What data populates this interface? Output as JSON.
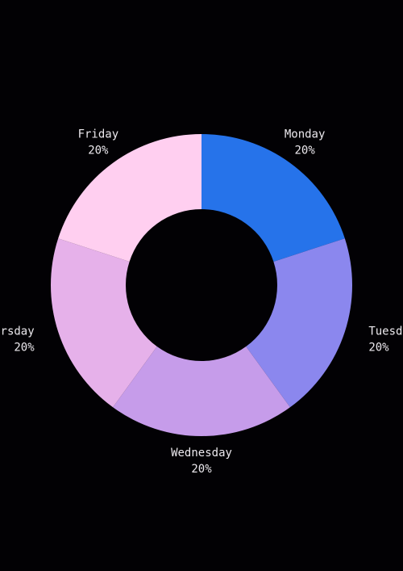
{
  "chart_data": {
    "type": "donut",
    "categories": [
      "Monday",
      "Tuesday",
      "Wednesday",
      "Thursday",
      "Friday"
    ],
    "values": [
      20,
      20,
      20,
      20,
      20
    ],
    "value_labels": [
      "20%",
      "20%",
      "20%",
      "20%",
      "20%"
    ],
    "colors": [
      "#2673ea",
      "#8b87ee",
      "#c69cea",
      "#e6b1ea",
      "#ffcff0"
    ]
  }
}
